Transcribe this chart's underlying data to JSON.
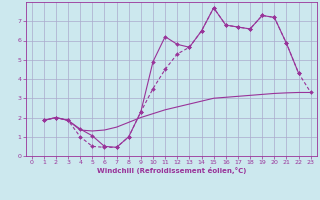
{
  "xlabel": "Windchill (Refroidissement éolien,°C)",
  "background_color": "#cce8ee",
  "grid_color": "#aaaacc",
  "line_color": "#993399",
  "xlim": [
    -0.5,
    23.5
  ],
  "ylim": [
    0,
    8
  ],
  "xticks": [
    0,
    1,
    2,
    3,
    4,
    5,
    6,
    7,
    8,
    9,
    10,
    11,
    12,
    13,
    14,
    15,
    16,
    17,
    18,
    19,
    20,
    21,
    22,
    23
  ],
  "yticks": [
    0,
    1,
    2,
    3,
    4,
    5,
    6,
    7
  ],
  "curve1_x": [
    1,
    2,
    3,
    4,
    5,
    6,
    7,
    8,
    9,
    10,
    11,
    12,
    13,
    14,
    15,
    16,
    17,
    18,
    19,
    20,
    21,
    22
  ],
  "curve1_y": [
    1.85,
    2.0,
    1.85,
    1.4,
    1.05,
    0.5,
    0.45,
    1.0,
    2.3,
    4.9,
    6.2,
    5.8,
    5.65,
    6.5,
    7.7,
    6.8,
    6.7,
    6.6,
    7.3,
    7.2,
    5.85,
    4.3
  ],
  "curve2_x": [
    1,
    2,
    3,
    4,
    5,
    6,
    7,
    8,
    9,
    10,
    11,
    12,
    13,
    14,
    15,
    16,
    17,
    18,
    19,
    20,
    21,
    22,
    23
  ],
  "curve2_y": [
    1.85,
    2.0,
    1.85,
    1.35,
    1.3,
    1.35,
    1.5,
    1.75,
    2.0,
    2.2,
    2.4,
    2.55,
    2.7,
    2.85,
    3.0,
    3.05,
    3.1,
    3.15,
    3.2,
    3.25,
    3.28,
    3.3,
    3.3
  ],
  "curve3_x": [
    1,
    2,
    3,
    4,
    5,
    6,
    7,
    8,
    9,
    10,
    11,
    12,
    13,
    14,
    15,
    16,
    17,
    18,
    19,
    20,
    21,
    22,
    23
  ],
  "curve3_y": [
    1.85,
    2.0,
    1.85,
    1.0,
    0.5,
    0.45,
    0.45,
    1.0,
    2.3,
    3.5,
    4.5,
    5.3,
    5.65,
    6.5,
    7.7,
    6.8,
    6.7,
    6.6,
    7.3,
    7.2,
    5.85,
    4.3,
    3.3
  ]
}
